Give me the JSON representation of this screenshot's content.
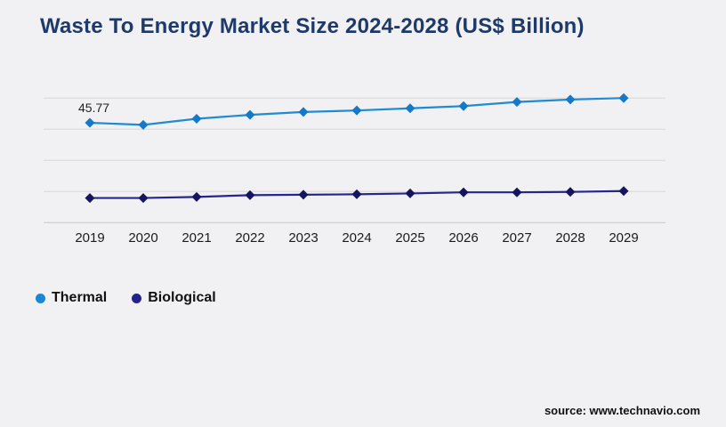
{
  "page": {
    "title": "Waste To Energy Market Size 2024-2028 (US$ Billion)",
    "source": "source: www.technavio.com",
    "background_color": "#f1f1f3",
    "title_color": "#1e3a6a"
  },
  "legend": {
    "items": [
      {
        "label": "Thermal",
        "color": "#1a86d6"
      },
      {
        "label": "Biological",
        "color": "#222289"
      }
    ]
  },
  "chart_data": {
    "type": "line",
    "title": "Waste To Energy Market Size 2024-2028 (US$ Billion)",
    "xlabel": "",
    "ylabel": "",
    "x": [
      2019,
      2020,
      2021,
      2022,
      2023,
      2024,
      2025,
      2026,
      2027,
      2028,
      2029
    ],
    "series": [
      {
        "name": "Thermal",
        "color": "#1f8ad5",
        "marker_color": "#1578c9",
        "marker": "diamond",
        "values": [
          45.77,
          44.8,
          47.6,
          49.4,
          50.7,
          51.4,
          52.4,
          53.4,
          55.3,
          56.4,
          57.1
        ]
      },
      {
        "name": "Biological",
        "color": "#26268c",
        "marker_color": "#14145f",
        "marker": "diamond",
        "values": [
          11.3,
          11.3,
          11.8,
          12.6,
          12.8,
          13.0,
          13.4,
          13.9,
          13.9,
          14.1,
          14.5
        ]
      }
    ],
    "annotations": [
      {
        "text": "45.77",
        "series": "Thermal",
        "x": 2019
      }
    ],
    "ylim": [
      0,
      61.5
    ],
    "y_axis_labels_visible": false,
    "gridlines": "horizontal",
    "grid_color": "#d7d7da",
    "axis_line_color": "#c8c8cc",
    "tick_label_color": "#1b1b1b",
    "annotation_color": "#222222",
    "legend_position": "bottom-left"
  }
}
